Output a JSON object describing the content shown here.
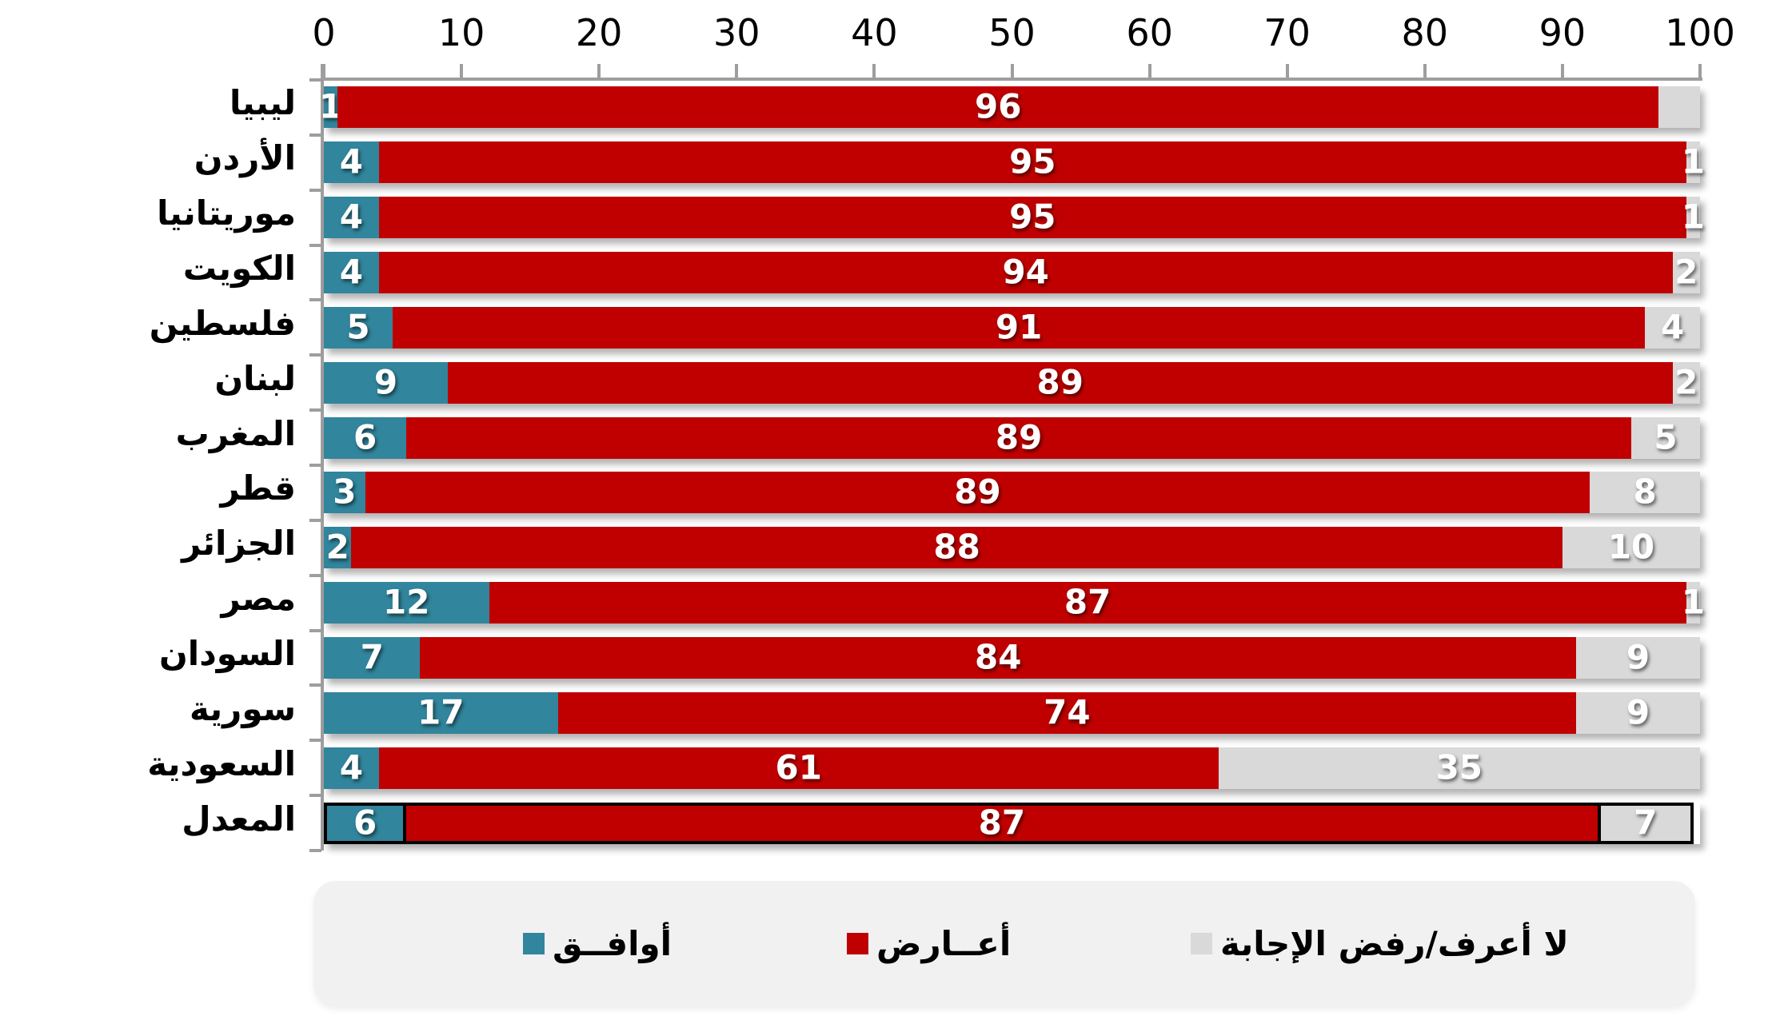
{
  "chart_data": {
    "type": "bar",
    "subtype": "horizontal-stacked-100",
    "title": "",
    "xlabel": "",
    "ylabel": "",
    "xlim": [
      0,
      100
    ],
    "x_ticks": [
      0,
      10,
      20,
      30,
      40,
      50,
      60,
      70,
      80,
      90,
      100
    ],
    "axis_position": "top",
    "grid": false,
    "legend_position": "bottom",
    "categories": [
      "ليبيا",
      "الأردن",
      "موريتانيا",
      "الكويت",
      "فلسطين",
      "لبنان",
      "المغرب",
      "قطر",
      "الجزائر",
      "مصر",
      "السودان",
      "سورية",
      "السعودية",
      "المعدل"
    ],
    "series": [
      {
        "name": "أوافــق",
        "color": "#31859C",
        "values": [
          1,
          4,
          4,
          4,
          5,
          9,
          6,
          3,
          2,
          12,
          7,
          17,
          4,
          6
        ]
      },
      {
        "name": "أعــارض",
        "color": "#C00000",
        "values": [
          96,
          95,
          95,
          94,
          91,
          89,
          89,
          89,
          88,
          87,
          84,
          74,
          61,
          87
        ]
      },
      {
        "name": "لا أعرف/رفض الإجابة",
        "color": "#D9D9D9",
        "values": [
          3,
          1,
          1,
          2,
          4,
          2,
          5,
          8,
          10,
          1,
          9,
          9,
          35,
          7
        ]
      }
    ],
    "data_labels": {
      "shown": true,
      "color": "#FFFFFF",
      "hidden_labels": [
        {
          "category": "ليبيا",
          "series_index": 2
        }
      ]
    },
    "highlight_category": "المعدل",
    "highlight_style": "black-border"
  },
  "legend": {
    "items": [
      {
        "label": "أوافــق",
        "color": "#31859C"
      },
      {
        "label": "أعــارض",
        "color": "#C00000"
      },
      {
        "label": "لا أعرف/رفض الإجابة",
        "color": "#D9D9D9"
      }
    ]
  },
  "colors": {
    "agree": "#31859C",
    "oppose": "#C00000",
    "dont_know": "#D9D9D9",
    "axis_line": "#9E9E9E",
    "legend_background": "#F1F1F2",
    "background": "#FFFFFF"
  }
}
